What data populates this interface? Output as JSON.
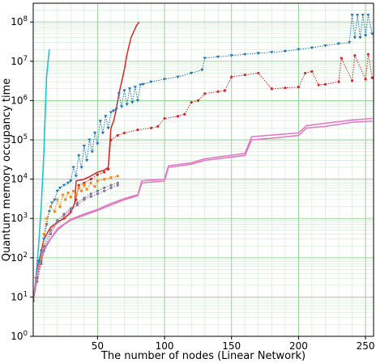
{
  "chart_data": {
    "type": "line",
    "xlabel": "The number of nodes (Linear Network)",
    "ylabel": "Quantum memory occupancy time",
    "x_scale": "linear",
    "y_scale": "log",
    "xlim": [
      2,
      256
    ],
    "ylim": [
      1,
      300000000
    ],
    "x_ticks": [
      50,
      100,
      150,
      200,
      250
    ],
    "x_tick_labels": [
      "50",
      "100",
      "150",
      "200",
      "250"
    ],
    "y_ticks": [
      1,
      10,
      100,
      1000,
      10000,
      100000,
      1000000,
      10000000,
      100000000
    ],
    "y_tick_labels": [
      {
        "base": "10",
        "exp": "0"
      },
      {
        "base": "10",
        "exp": "1"
      },
      {
        "base": "10",
        "exp": "2"
      },
      {
        "base": "10",
        "exp": "3"
      },
      {
        "base": "10",
        "exp": "4"
      },
      {
        "base": "10",
        "exp": "5"
      },
      {
        "base": "10",
        "exp": "6"
      },
      {
        "base": "10",
        "exp": "7"
      },
      {
        "base": "10",
        "exp": "8"
      }
    ],
    "grid": "major and minor",
    "legend": "none",
    "series": [
      {
        "color": "#17becf",
        "style": "solid",
        "marker": "none",
        "points": [
          [
            2,
            8
          ],
          [
            4,
            30
          ],
          [
            6,
            200
          ],
          [
            8,
            2000
          ],
          [
            10,
            50000
          ],
          [
            12,
            4000000
          ],
          [
            14,
            20000000
          ]
        ]
      },
      {
        "color": "#d62728",
        "style": "solid",
        "marker": "none",
        "points": [
          [
            2,
            8
          ],
          [
            5,
            50
          ],
          [
            10,
            300
          ],
          [
            15,
            600
          ],
          [
            20,
            800
          ],
          [
            25,
            1000
          ],
          [
            30,
            1400
          ],
          [
            33,
            2500
          ],
          [
            34,
            9000
          ],
          [
            40,
            10000
          ],
          [
            45,
            12000
          ],
          [
            50,
            15000
          ],
          [
            55,
            17000
          ],
          [
            58,
            20000
          ],
          [
            60,
            200000
          ],
          [
            62,
            300000
          ],
          [
            64,
            600000
          ],
          [
            66,
            1500000
          ],
          [
            68,
            3000000
          ],
          [
            70,
            6000000
          ],
          [
            72,
            15000000
          ],
          [
            75,
            40000000
          ],
          [
            79,
            80000000
          ],
          [
            81,
            100000000
          ]
        ]
      },
      {
        "color": "#1f77b4",
        "style": "dotted",
        "marker": "triangle",
        "points": [
          [
            2,
            8
          ],
          [
            4,
            30
          ],
          [
            6,
            80
          ],
          [
            8,
            150
          ],
          [
            10,
            300
          ],
          [
            12,
            700
          ],
          [
            14,
            1500
          ],
          [
            16,
            2500
          ],
          [
            18,
            3000
          ],
          [
            20,
            5000
          ],
          [
            22,
            6000
          ],
          [
            25,
            7000
          ],
          [
            28,
            8000
          ],
          [
            30,
            9000
          ],
          [
            32,
            20000
          ],
          [
            34,
            12000
          ],
          [
            36,
            40000
          ],
          [
            38,
            20000
          ],
          [
            40,
            70000
          ],
          [
            42,
            30000
          ],
          [
            44,
            100000
          ],
          [
            46,
            50000
          ],
          [
            48,
            150000
          ],
          [
            50,
            80000
          ],
          [
            52,
            300000
          ],
          [
            54,
            150000
          ],
          [
            56,
            400000
          ],
          [
            58,
            200000
          ],
          [
            60,
            500000
          ],
          [
            62,
            550000
          ],
          [
            64,
            600000
          ],
          [
            66,
            1500000
          ],
          [
            68,
            700000
          ],
          [
            70,
            1800000
          ],
          [
            72,
            800000
          ],
          [
            74,
            2000000
          ],
          [
            76,
            900000
          ],
          [
            78,
            2200000
          ],
          [
            80,
            1000000
          ],
          [
            82,
            2500000
          ],
          [
            84,
            2600000
          ],
          [
            90,
            3000000
          ],
          [
            100,
            3500000
          ],
          [
            110,
            4000000
          ],
          [
            120,
            5000000
          ],
          [
            128,
            6000000
          ],
          [
            130,
            12000000
          ],
          [
            140,
            13000000
          ],
          [
            150,
            14000000
          ],
          [
            160,
            15000000
          ],
          [
            170,
            16000000
          ],
          [
            180,
            17000000
          ],
          [
            190,
            18000000
          ],
          [
            200,
            20000000
          ],
          [
            210,
            22000000
          ],
          [
            220,
            25000000
          ],
          [
            230,
            28000000
          ],
          [
            238,
            30000000
          ],
          [
            240,
            150000000
          ],
          [
            242,
            40000000
          ],
          [
            244,
            150000000
          ],
          [
            246,
            40000000
          ],
          [
            248,
            150000000
          ],
          [
            250,
            45000000
          ],
          [
            252,
            150000000
          ],
          [
            255,
            50000000
          ]
        ]
      },
      {
        "color": "#d62728",
        "style": "dotted",
        "marker": "circle",
        "points": [
          [
            2,
            8
          ],
          [
            5,
            30
          ],
          [
            10,
            200
          ],
          [
            15,
            500
          ],
          [
            20,
            800
          ],
          [
            25,
            1000
          ],
          [
            30,
            1500
          ],
          [
            34,
            3000
          ],
          [
            36,
            7000
          ],
          [
            40,
            8000
          ],
          [
            45,
            10000
          ],
          [
            50,
            13000
          ],
          [
            55,
            15000
          ],
          [
            58,
            18000
          ],
          [
            60,
            100000
          ],
          [
            65,
            130000
          ],
          [
            70,
            150000
          ],
          [
            80,
            180000
          ],
          [
            90,
            200000
          ],
          [
            95,
            220000
          ],
          [
            100,
            350000
          ],
          [
            110,
            400000
          ],
          [
            115,
            450000
          ],
          [
            120,
            900000
          ],
          [
            125,
            1000000
          ],
          [
            130,
            1500000
          ],
          [
            140,
            1700000
          ],
          [
            145,
            1800000
          ],
          [
            150,
            4000000
          ],
          [
            160,
            4500000
          ],
          [
            170,
            5000000
          ],
          [
            180,
            2000000
          ],
          [
            190,
            2100000
          ],
          [
            200,
            2200000
          ],
          [
            205,
            5000000
          ],
          [
            210,
            5500000
          ],
          [
            215,
            2500000
          ],
          [
            220,
            2600000
          ],
          [
            230,
            3000000
          ],
          [
            232,
            12000000
          ],
          [
            240,
            3200000
          ],
          [
            242,
            14000000
          ],
          [
            250,
            3500000
          ],
          [
            252,
            15000000
          ],
          [
            255,
            3800000
          ]
        ]
      },
      {
        "color": "#e377c2",
        "style": "solid",
        "marker": "none",
        "points": [
          [
            2,
            8
          ],
          [
            5,
            40
          ],
          [
            10,
            150
          ],
          [
            15,
            300
          ],
          [
            20,
            500
          ],
          [
            25,
            700
          ],
          [
            30,
            900
          ],
          [
            40,
            1200
          ],
          [
            50,
            1600
          ],
          [
            60,
            2200
          ],
          [
            70,
            3000
          ],
          [
            80,
            3800
          ],
          [
            83,
            8000
          ],
          [
            100,
            9000
          ],
          [
            103,
            20000
          ],
          [
            120,
            24000
          ],
          [
            130,
            30000
          ],
          [
            160,
            40000
          ],
          [
            165,
            100000
          ],
          [
            180,
            110000
          ],
          [
            200,
            130000
          ],
          [
            206,
            200000
          ],
          [
            220,
            220000
          ],
          [
            230,
            250000
          ],
          [
            240,
            280000
          ],
          [
            255,
            300000
          ]
        ]
      },
      {
        "color": "#e377c2",
        "style": "solid",
        "marker": "none",
        "points": [
          [
            2,
            9
          ],
          [
            5,
            45
          ],
          [
            10,
            170
          ],
          [
            20,
            550
          ],
          [
            30,
            950
          ],
          [
            40,
            1300
          ],
          [
            50,
            1700
          ],
          [
            60,
            2400
          ],
          [
            70,
            3200
          ],
          [
            80,
            4000
          ],
          [
            83,
            9000
          ],
          [
            100,
            10000
          ],
          [
            103,
            22000
          ],
          [
            120,
            26000
          ],
          [
            130,
            33000
          ],
          [
            160,
            45000
          ],
          [
            165,
            120000
          ],
          [
            200,
            150000
          ],
          [
            206,
            230000
          ],
          [
            240,
            320000
          ],
          [
            255,
            350000
          ]
        ]
      },
      {
        "color": "#ff7f0e",
        "style": "dotted",
        "marker": "circle",
        "points": [
          [
            2,
            8
          ],
          [
            5,
            30
          ],
          [
            8,
            100
          ],
          [
            10,
            400
          ],
          [
            12,
            1000
          ],
          [
            15,
            2000
          ],
          [
            18,
            1500
          ],
          [
            20,
            3000
          ],
          [
            22,
            2000
          ],
          [
            24,
            4000
          ],
          [
            26,
            3000
          ],
          [
            28,
            4500
          ],
          [
            30,
            3500
          ],
          [
            32,
            5000
          ],
          [
            34,
            4000
          ],
          [
            36,
            6000
          ],
          [
            38,
            5000
          ],
          [
            40,
            7000
          ],
          [
            42,
            5500
          ],
          [
            45,
            8000
          ],
          [
            48,
            6500
          ],
          [
            50,
            9000
          ],
          [
            55,
            10000
          ],
          [
            60,
            11000
          ],
          [
            65,
            12000
          ]
        ]
      },
      {
        "color": "#9467bd",
        "style": "dotted",
        "marker": "circle",
        "points": [
          [
            2,
            8
          ],
          [
            5,
            25
          ],
          [
            8,
            70
          ],
          [
            10,
            150
          ],
          [
            15,
            400
          ],
          [
            20,
            800
          ],
          [
            25,
            1200
          ],
          [
            30,
            1600
          ],
          [
            35,
            2200
          ],
          [
            40,
            3000
          ],
          [
            45,
            3600
          ],
          [
            50,
            4200
          ],
          [
            55,
            5000
          ],
          [
            60,
            6000
          ],
          [
            65,
            7000
          ]
        ]
      },
      {
        "color": "#7f7f7f",
        "style": "dotted",
        "marker": "circle",
        "points": [
          [
            2,
            8
          ],
          [
            5,
            30
          ],
          [
            8,
            80
          ],
          [
            10,
            200
          ],
          [
            15,
            500
          ],
          [
            20,
            900
          ],
          [
            25,
            1300
          ],
          [
            30,
            1800
          ],
          [
            35,
            2500
          ],
          [
            40,
            3300
          ],
          [
            45,
            4200
          ],
          [
            50,
            5000
          ],
          [
            55,
            6000
          ],
          [
            60,
            7000
          ],
          [
            65,
            8000
          ]
        ]
      }
    ]
  }
}
